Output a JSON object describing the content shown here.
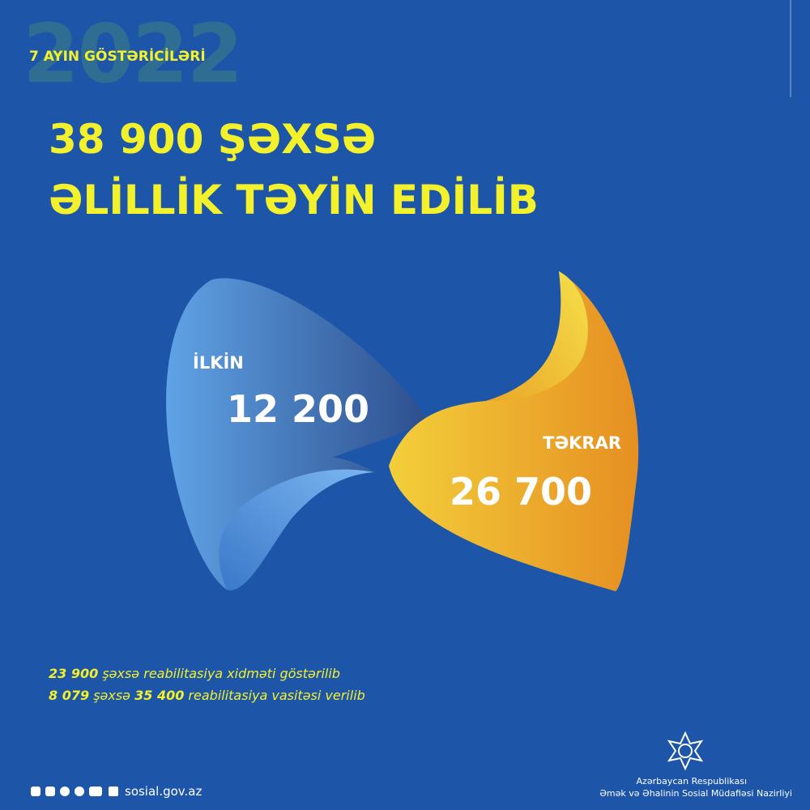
{
  "header": {
    "year": "2022",
    "subtitle": "7 AYIN GÖSTƏRİCİLƏRİ",
    "title_line1": "38 900 ŞƏXSƏ",
    "title_line2": "ƏLİLLİK TƏYİN EDİLİB"
  },
  "segments": [
    {
      "label": "İLKİN",
      "value": "12 200"
    },
    {
      "label": "TƏKRAR",
      "value": "26 700"
    }
  ],
  "notes": [
    [
      "23 900",
      " şəxsə reabilitasiya xidməti göstərilib"
    ],
    [
      "8 079",
      " şəxsə ",
      "35 400",
      " reabilitasiya vasitəsi verilib"
    ]
  ],
  "footer": {
    "website": "sosial.gov.az",
    "org_line1": "Azərbaycan Respublikası",
    "org_line2": "Əmək və Əhalinin Sosial Müdafiəsi Nazirliyi"
  }
}
